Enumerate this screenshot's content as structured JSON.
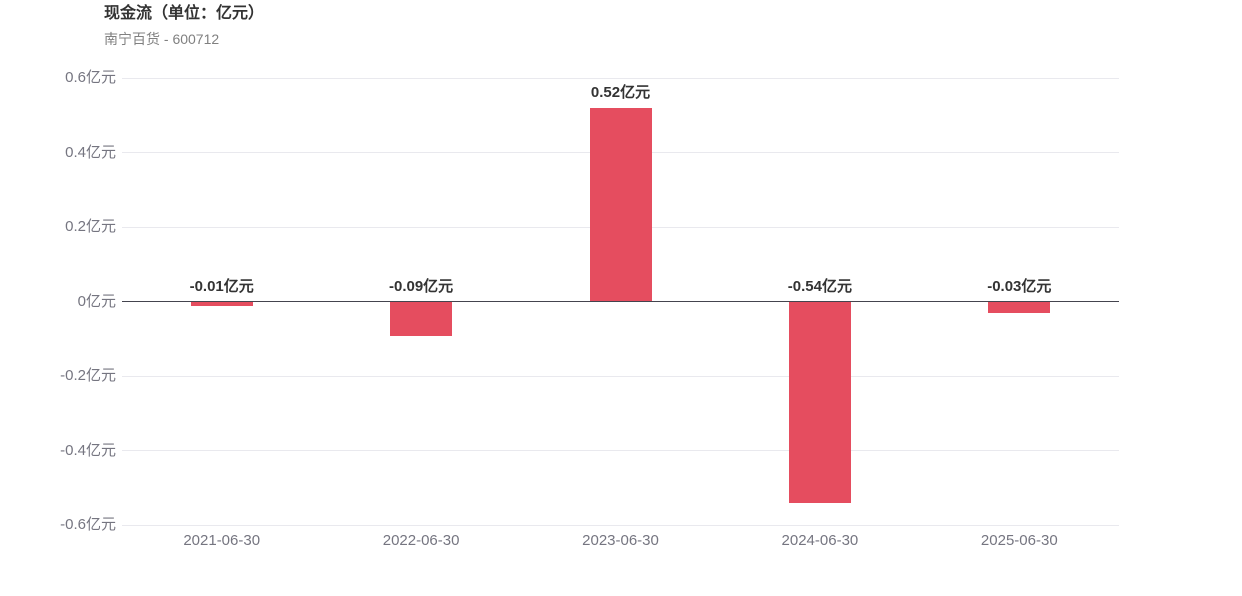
{
  "header": {
    "title": "现金流（单位：亿元）",
    "subtitle": "南宁百货 - 600712"
  },
  "chart_data": {
    "type": "bar",
    "title": "现金流（单位：亿元）",
    "subtitle": "南宁百货 - 600712",
    "categories": [
      "2021-06-30",
      "2022-06-30",
      "2023-06-30",
      "2024-06-30",
      "2025-06-30"
    ],
    "values": [
      -0.01,
      -0.09,
      0.52,
      -0.54,
      -0.03
    ],
    "value_labels": [
      "-0.01亿元",
      "-0.09亿元",
      "0.52亿元",
      "-0.54亿元",
      "-0.03亿元"
    ],
    "ytick_values": [
      0.6,
      0.4,
      0.2,
      0,
      -0.2,
      -0.4,
      -0.6
    ],
    "ytick_labels": [
      "0.6亿元",
      "0.4亿元",
      "0.2亿元",
      "0亿元",
      "-0.2亿元",
      "-0.4亿元",
      "-0.6亿元"
    ],
    "ylim": [
      -0.6,
      0.6
    ],
    "xlabel": "",
    "ylabel": "",
    "grid": true,
    "legend_position": "none",
    "bar_color": "#e54d5f",
    "gridline_color": "#e9e9ee",
    "zero_line_color": "#44444e",
    "axis_text_color": "#757580",
    "label_text_color": "#333333"
  }
}
